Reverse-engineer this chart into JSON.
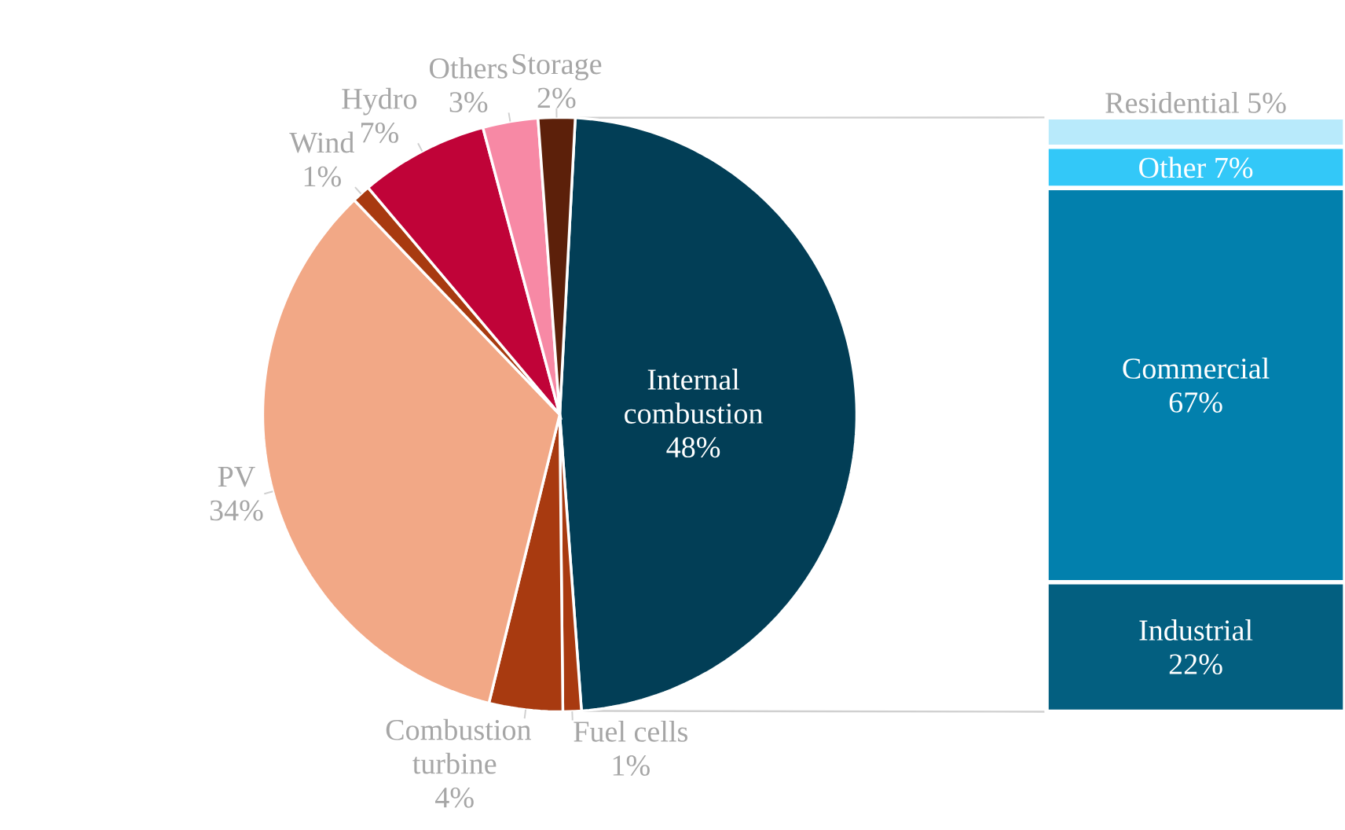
{
  "chart_data": [
    {
      "type": "pie",
      "categories": [
        "Internal combustion",
        "Fuel cells",
        "Combustion turbine",
        "PV",
        "Wind",
        "Hydro",
        "Others",
        "Storage"
      ],
      "values": [
        48,
        1,
        4,
        34,
        1,
        7,
        3,
        2
      ],
      "colors": [
        "#023e56",
        "#a83a10",
        "#a83a10",
        "#f2a886",
        "#a83a10",
        "#c00338",
        "#f789a5",
        "#5c200a"
      ],
      "value_labels": [
        "48%",
        "1%",
        "4%",
        "34%",
        "1%",
        "7%",
        "3%",
        "2%"
      ]
    },
    {
      "type": "bar",
      "stacked": true,
      "categories": [
        null
      ],
      "series": [
        {
          "name": "Industrial",
          "color": "#035f80",
          "values": [
            22
          ],
          "value_labels": [
            "22%"
          ]
        },
        {
          "name": "Commercial",
          "color": "#0280ad",
          "values": [
            67
          ],
          "value_labels": [
            "67%"
          ]
        },
        {
          "name": "Other",
          "color": "#33c8f8",
          "values": [
            7
          ],
          "value_labels": [
            "7%"
          ]
        },
        {
          "name": "Residential",
          "color": "#b8eafb",
          "values": [
            5
          ],
          "value_labels": [
            "5%"
          ]
        }
      ]
    }
  ]
}
